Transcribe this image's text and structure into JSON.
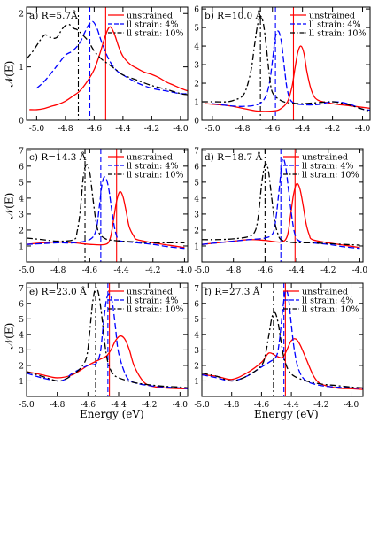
{
  "axis_titles": {
    "ylabel": "𝒩(E)",
    "xlabel": "Energy (eV)"
  },
  "legend_labels": [
    "unstrained",
    "ll strain: 4%",
    "ll strain: 10%"
  ],
  "colors": {
    "unstrained": "#ff0000",
    "strain4": "#0000ff",
    "strain10": "#000000"
  },
  "chart_data": [
    {
      "type": "line",
      "panel_label": "a) R=5.7Å",
      "xlim": [
        -5.07,
        -3.95
      ],
      "ylim": [
        0,
        2.12
      ],
      "xticks": [
        -5.0,
        -4.8,
        -4.6,
        -4.4,
        -4.2,
        -4.0
      ],
      "xticklabels": [
        "-5.0",
        "-4.8",
        "-4.6",
        "-4.4",
        "-4.2",
        "-4.0"
      ],
      "yticks": [
        0,
        1,
        2
      ],
      "yticklabels": [
        "0",
        "1",
        "2"
      ],
      "vlines": [
        -4.52,
        -4.63,
        -4.71
      ],
      "series": [
        {
          "name": "unstrained",
          "x": [
            -5.05,
            -5.0,
            -4.95,
            -4.9,
            -4.85,
            -4.8,
            -4.75,
            -4.7,
            -4.65,
            -4.6,
            -4.56,
            -4.52,
            -4.49,
            -4.46,
            -4.43,
            -4.4,
            -4.35,
            -4.3,
            -4.25,
            -4.2,
            -4.15,
            -4.1,
            -4.05,
            -4.0,
            -3.95
          ],
          "y": [
            0.2,
            0.2,
            0.22,
            0.26,
            0.3,
            0.36,
            0.45,
            0.55,
            0.72,
            0.95,
            1.25,
            1.6,
            1.75,
            1.62,
            1.38,
            1.2,
            1.05,
            0.97,
            0.9,
            0.86,
            0.8,
            0.72,
            0.66,
            0.6,
            0.55
          ]
        },
        {
          "name": "ll strain: 4%",
          "x": [
            -5.0,
            -4.95,
            -4.9,
            -4.85,
            -4.8,
            -4.75,
            -4.7,
            -4.67,
            -4.64,
            -4.61,
            -4.58,
            -4.55,
            -4.5,
            -4.45,
            -4.4,
            -4.3,
            -4.2,
            -4.1,
            -4.0,
            -3.95
          ],
          "y": [
            0.6,
            0.72,
            0.88,
            1.05,
            1.22,
            1.3,
            1.45,
            1.62,
            1.78,
            1.85,
            1.72,
            1.48,
            1.15,
            0.95,
            0.85,
            0.7,
            0.6,
            0.55,
            0.5,
            0.5
          ]
        },
        {
          "name": "ll strain: 10%",
          "x": [
            -5.07,
            -5.03,
            -5.0,
            -4.97,
            -4.94,
            -4.9,
            -4.86,
            -4.82,
            -4.78,
            -4.74,
            -4.72,
            -4.68,
            -4.64,
            -4.6,
            -4.55,
            -4.5,
            -4.45,
            -4.4,
            -4.3,
            -4.2,
            -4.1,
            -4.0,
            -3.95
          ],
          "y": [
            1.15,
            1.28,
            1.4,
            1.52,
            1.6,
            1.55,
            1.55,
            1.72,
            1.8,
            1.72,
            1.7,
            1.6,
            1.48,
            1.3,
            1.15,
            1.05,
            0.95,
            0.85,
            0.75,
            0.65,
            0.58,
            0.5,
            0.48
          ]
        }
      ]
    },
    {
      "type": "line",
      "panel_label": "b) R=10.0 Å",
      "xlim": [
        -5.07,
        -3.95
      ],
      "ylim": [
        0,
        6.1
      ],
      "xticks": [
        -5.0,
        -4.8,
        -4.6,
        -4.4,
        -4.2,
        -4.0
      ],
      "xticklabels": [
        "-5.0",
        "-4.8",
        "-4.6",
        "-4.4",
        "-4.2",
        "-4.0"
      ],
      "yticks": [
        0,
        1,
        2,
        3,
        4,
        5,
        6
      ],
      "yticklabels": [
        "0",
        "1",
        "2",
        "3",
        "4",
        "5",
        "6"
      ],
      "vlines": [
        -4.46,
        -4.58,
        -4.68
      ],
      "series": [
        {
          "name": "unstrained",
          "x": [
            -5.05,
            -4.9,
            -4.8,
            -4.7,
            -4.6,
            -4.55,
            -4.5,
            -4.47,
            -4.45,
            -4.43,
            -4.41,
            -4.39,
            -4.37,
            -4.34,
            -4.3,
            -4.2,
            -4.1,
            -4.0,
            -3.95
          ],
          "y": [
            0.9,
            0.8,
            0.65,
            0.5,
            0.5,
            0.6,
            1.0,
            1.8,
            2.8,
            3.7,
            4.0,
            3.6,
            2.6,
            1.6,
            1.1,
            0.9,
            0.8,
            0.7,
            0.65
          ]
        },
        {
          "name": "ll strain: 4%",
          "x": [
            -5.0,
            -4.9,
            -4.8,
            -4.7,
            -4.65,
            -4.62,
            -4.6,
            -4.58,
            -4.56,
            -4.54,
            -4.52,
            -4.5,
            -4.47,
            -4.4,
            -4.3,
            -4.2,
            -4.1,
            -4.0,
            -3.95
          ],
          "y": [
            0.9,
            0.8,
            0.75,
            0.85,
            1.2,
            2.0,
            3.2,
            4.5,
            4.8,
            4.2,
            2.8,
            1.6,
            1.0,
            0.85,
            0.85,
            1.0,
            0.9,
            0.6,
            0.55
          ]
        },
        {
          "name": "ll strain: 10%",
          "x": [
            -5.07,
            -5.0,
            -4.9,
            -4.85,
            -4.8,
            -4.77,
            -4.74,
            -4.72,
            -4.7,
            -4.68,
            -4.66,
            -4.64,
            -4.62,
            -4.6,
            -4.55,
            -4.5,
            -4.4,
            -4.3,
            -4.2,
            -4.1,
            -4.0,
            -3.95
          ],
          "y": [
            1.0,
            1.0,
            1.0,
            1.1,
            1.3,
            1.8,
            2.8,
            4.0,
            5.1,
            5.6,
            5.2,
            3.9,
            2.4,
            1.5,
            1.1,
            0.95,
            0.9,
            0.95,
            1.0,
            0.85,
            0.6,
            0.5
          ]
        }
      ]
    },
    {
      "type": "line",
      "panel_label": "c) R=14.3 Å",
      "xlim": [
        -5.0,
        -3.98
      ],
      "ylim": [
        0,
        7.1
      ],
      "xticks": [
        -5.0,
        -4.8,
        -4.6,
        -4.4,
        -4.2,
        -4.0
      ],
      "xticklabels": [
        "-5.0",
        "-4.8",
        "-4.6",
        "-4.4",
        "-4.2",
        "-4.0"
      ],
      "yticks": [
        1,
        2,
        3,
        4,
        5,
        6,
        7
      ],
      "yticklabels": [
        "1",
        "2",
        "3",
        "4",
        "5",
        "6",
        "7"
      ],
      "vlines": [
        -4.43,
        -4.53,
        -4.63
      ],
      "series": [
        {
          "name": "unstrained",
          "x": [
            -5.0,
            -4.9,
            -4.8,
            -4.7,
            -4.6,
            -4.5,
            -4.47,
            -4.45,
            -4.43,
            -4.41,
            -4.39,
            -4.37,
            -4.35,
            -4.32,
            -4.3,
            -4.2,
            -4.1,
            -4.0
          ],
          "y": [
            1.1,
            1.2,
            1.25,
            1.2,
            1.1,
            1.1,
            1.5,
            2.6,
            3.8,
            4.4,
            4.1,
            3.2,
            2.2,
            1.6,
            1.4,
            1.2,
            1.05,
            0.9
          ]
        },
        {
          "name": "ll strain: 4%",
          "x": [
            -5.0,
            -4.9,
            -4.8,
            -4.7,
            -4.6,
            -4.56,
            -4.54,
            -4.52,
            -4.5,
            -4.48,
            -4.46,
            -4.44,
            -4.42,
            -4.4,
            -4.3,
            -4.2,
            -4.1,
            -4.0
          ],
          "y": [
            1.1,
            1.15,
            1.2,
            1.2,
            1.4,
            2.0,
            3.4,
            5.0,
            5.3,
            4.6,
            3.2,
            2.0,
            1.4,
            1.3,
            1.2,
            1.1,
            0.95,
            0.85
          ]
        },
        {
          "name": "ll strain: 10%",
          "x": [
            -5.0,
            -4.9,
            -4.8,
            -4.7,
            -4.68,
            -4.66,
            -4.64,
            -4.62,
            -4.6,
            -4.58,
            -4.56,
            -4.54,
            -4.5,
            -4.45,
            -4.4,
            -4.3,
            -4.2,
            -4.1,
            -4.0
          ],
          "y": [
            1.5,
            1.4,
            1.3,
            1.4,
            1.9,
            3.2,
            5.4,
            6.1,
            5.6,
            4.0,
            2.5,
            1.8,
            1.45,
            1.35,
            1.3,
            1.25,
            1.2,
            1.2,
            1.2
          ]
        }
      ]
    },
    {
      "type": "line",
      "panel_label": "d) R=18.7 Å",
      "xlim": [
        -5.0,
        -3.98
      ],
      "ylim": [
        0,
        7.1
      ],
      "xticks": [
        -5.0,
        -4.8,
        -4.6,
        -4.4,
        -4.2,
        -4.0
      ],
      "xticklabels": [
        "-5.0",
        "-4.8",
        "-4.6",
        "-4.4",
        "-4.2",
        "-4.0"
      ],
      "yticks": [
        1,
        2,
        3,
        4,
        5,
        6,
        7
      ],
      "yticklabels": [
        "1",
        "2",
        "3",
        "4",
        "5",
        "6",
        "7"
      ],
      "vlines": [
        -4.41,
        -4.5,
        -4.6
      ],
      "series": [
        {
          "name": "unstrained",
          "x": [
            -5.0,
            -4.9,
            -4.8,
            -4.7,
            -4.6,
            -4.5,
            -4.46,
            -4.44,
            -4.42,
            -4.4,
            -4.38,
            -4.36,
            -4.34,
            -4.32,
            -4.3,
            -4.2,
            -4.1,
            -4.0
          ],
          "y": [
            1.1,
            1.2,
            1.3,
            1.4,
            1.35,
            1.25,
            1.6,
            2.8,
            4.2,
            4.9,
            4.6,
            3.6,
            2.4,
            1.7,
            1.4,
            1.2,
            1.05,
            0.9
          ]
        },
        {
          "name": "ll strain: 4%",
          "x": [
            -5.0,
            -4.9,
            -4.8,
            -4.7,
            -4.6,
            -4.55,
            -4.53,
            -4.51,
            -4.49,
            -4.47,
            -4.45,
            -4.43,
            -4.41,
            -4.38,
            -4.3,
            -4.2,
            -4.1,
            -4.0
          ],
          "y": [
            1.1,
            1.2,
            1.3,
            1.4,
            1.5,
            1.8,
            2.8,
            4.6,
            6.4,
            6.0,
            4.4,
            2.8,
            1.7,
            1.3,
            1.2,
            1.1,
            0.95,
            0.85
          ]
        },
        {
          "name": "ll strain: 10%",
          "x": [
            -5.0,
            -4.9,
            -4.8,
            -4.7,
            -4.66,
            -4.64,
            -4.62,
            -4.6,
            -4.58,
            -4.56,
            -4.54,
            -4.52,
            -4.5,
            -4.45,
            -4.4,
            -4.3,
            -4.2,
            -4.1,
            -4.0
          ],
          "y": [
            1.4,
            1.4,
            1.45,
            1.6,
            2.0,
            3.1,
            5.0,
            6.1,
            5.8,
            4.2,
            2.6,
            1.8,
            1.4,
            1.25,
            1.2,
            1.2,
            1.15,
            1.1,
            1.05
          ]
        }
      ]
    },
    {
      "type": "line",
      "panel_label": "e) R=23.0 Å",
      "xlim": [
        -5.0,
        -3.95
      ],
      "ylim": [
        0,
        7.3
      ],
      "xticks": [
        -5.0,
        -4.8,
        -4.6,
        -4.4,
        -4.2,
        -4.0
      ],
      "xticklabels": [
        "-5.0",
        "-4.8",
        "-4.6",
        "-4.4",
        "-4.2",
        "-4.0"
      ],
      "yticks": [
        1,
        2,
        3,
        4,
        5,
        6,
        7
      ],
      "yticklabels": [
        "1",
        "2",
        "3",
        "4",
        "5",
        "6",
        "7"
      ],
      "vlines": [
        -4.46,
        -4.47,
        -4.55
      ],
      "series": [
        {
          "name": "unstrained",
          "x": [
            -5.0,
            -4.9,
            -4.8,
            -4.7,
            -4.6,
            -4.52,
            -4.48,
            -4.45,
            -4.42,
            -4.39,
            -4.36,
            -4.33,
            -4.3,
            -4.25,
            -4.2,
            -4.1,
            -4.0,
            -3.95
          ],
          "y": [
            1.6,
            1.4,
            1.2,
            1.4,
            2.0,
            2.4,
            2.6,
            3.0,
            3.6,
            3.9,
            3.7,
            3.0,
            2.0,
            1.1,
            0.7,
            0.55,
            0.5,
            0.5
          ]
        },
        {
          "name": "ll strain: 4%",
          "x": [
            -5.0,
            -4.9,
            -4.8,
            -4.75,
            -4.7,
            -4.6,
            -4.55,
            -4.52,
            -4.5,
            -4.48,
            -4.46,
            -4.44,
            -4.42,
            -4.4,
            -4.35,
            -4.3,
            -4.2,
            -4.1,
            -4.0,
            -3.95
          ],
          "y": [
            1.5,
            1.2,
            1.0,
            1.1,
            1.5,
            2.0,
            2.1,
            2.8,
            4.6,
            6.2,
            6.6,
            6.0,
            4.4,
            2.8,
            1.3,
            0.9,
            0.7,
            0.6,
            0.55,
            0.5
          ]
        },
        {
          "name": "ll strain: 10%",
          "x": [
            -5.0,
            -4.9,
            -4.8,
            -4.75,
            -4.7,
            -4.65,
            -4.61,
            -4.59,
            -4.57,
            -4.55,
            -4.53,
            -4.51,
            -4.49,
            -4.47,
            -4.44,
            -4.4,
            -4.3,
            -4.2,
            -4.1,
            -4.0,
            -3.95
          ],
          "y": [
            1.6,
            1.3,
            1.0,
            1.1,
            1.4,
            1.8,
            2.5,
            4.0,
            6.0,
            7.0,
            6.6,
            5.2,
            3.4,
            2.2,
            1.5,
            1.2,
            0.9,
            0.75,
            0.65,
            0.6,
            0.55
          ]
        }
      ]
    },
    {
      "type": "line",
      "panel_label": "f) R=27.3 Å",
      "xlim": [
        -5.0,
        -3.92
      ],
      "ylim": [
        0,
        7.3
      ],
      "xticks": [
        -5.0,
        -4.8,
        -4.6,
        -4.4,
        -4.2,
        -4.0
      ],
      "xticklabels": [
        "-5.0",
        "-4.8",
        "-4.6",
        "-4.4",
        "-4.2",
        "-4.0"
      ],
      "yticks": [
        1,
        2,
        3,
        4,
        5,
        6,
        7
      ],
      "yticklabels": [
        "1",
        "2",
        "3",
        "4",
        "5",
        "6",
        "7"
      ],
      "vlines": [
        -4.44,
        -4.45,
        -4.52
      ],
      "series": [
        {
          "name": "unstrained",
          "x": [
            -5.0,
            -4.9,
            -4.8,
            -4.7,
            -4.6,
            -4.55,
            -4.5,
            -4.46,
            -4.43,
            -4.4,
            -4.37,
            -4.34,
            -4.3,
            -4.25,
            -4.2,
            -4.1,
            -4.0,
            -3.92
          ],
          "y": [
            1.4,
            1.3,
            1.1,
            1.5,
            2.2,
            2.8,
            2.6,
            2.5,
            3.0,
            3.6,
            3.7,
            3.3,
            2.4,
            1.3,
            0.8,
            0.55,
            0.5,
            0.45
          ]
        },
        {
          "name": "ll strain: 4%",
          "x": [
            -5.0,
            -4.9,
            -4.8,
            -4.7,
            -4.6,
            -4.55,
            -4.5,
            -4.48,
            -4.46,
            -4.44,
            -4.42,
            -4.4,
            -4.38,
            -4.35,
            -4.3,
            -4.2,
            -4.1,
            -4.0,
            -3.92
          ],
          "y": [
            1.4,
            1.2,
            1.0,
            1.3,
            1.9,
            2.2,
            2.6,
            3.6,
            5.4,
            6.8,
            6.4,
            4.6,
            3.0,
            1.7,
            1.0,
            0.7,
            0.6,
            0.55,
            0.5
          ]
        },
        {
          "name": "ll strain: 10%",
          "x": [
            -5.0,
            -4.9,
            -4.8,
            -4.7,
            -4.6,
            -4.57,
            -4.55,
            -4.53,
            -4.51,
            -4.49,
            -4.47,
            -4.45,
            -4.42,
            -4.38,
            -4.3,
            -4.2,
            -4.1,
            -4.0,
            -3.92
          ],
          "y": [
            1.5,
            1.3,
            1.0,
            1.3,
            2.0,
            2.9,
            4.0,
            5.1,
            5.4,
            4.8,
            3.6,
            2.5,
            1.7,
            1.3,
            1.0,
            0.8,
            0.7,
            0.6,
            0.55
          ]
        }
      ]
    }
  ]
}
